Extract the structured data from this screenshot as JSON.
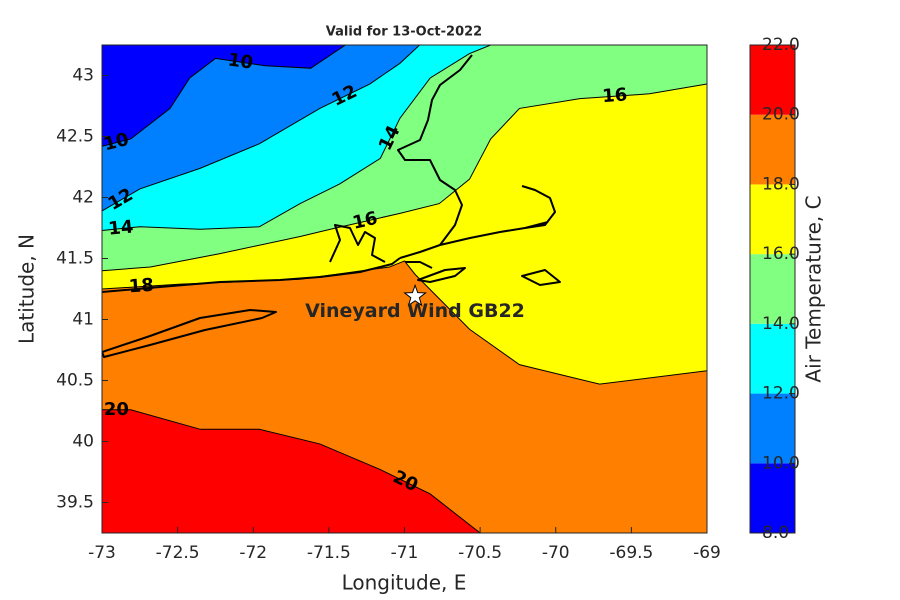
{
  "chart_data": {
    "type": "contour",
    "title": "Valid for 13-Oct-2022",
    "x_label": "Longitude, E",
    "y_label": "Latitude, N",
    "colorbar_label": "Air Temperature, C",
    "xlim": [
      -73,
      -69
    ],
    "ylim": [
      39.25,
      43.25
    ],
    "xticks": [
      -73,
      -72.5,
      -72,
      -71.5,
      -71,
      -70.5,
      -70,
      -69.5,
      -69
    ],
    "yticks": [
      39.5,
      40,
      40.5,
      41,
      41.5,
      42,
      42.5,
      43
    ],
    "clim": [
      8,
      22
    ],
    "cticks": [
      {
        "value": 8,
        "label": "8.0"
      },
      {
        "value": 10,
        "label": "10.0"
      },
      {
        "value": 12,
        "label": "12.0"
      },
      {
        "value": 14,
        "label": "14.0"
      },
      {
        "value": 16,
        "label": "16.0"
      },
      {
        "value": 18,
        "label": "18.0"
      },
      {
        "value": 20,
        "label": "20.0"
      },
      {
        "value": 22,
        "label": "22.0"
      }
    ],
    "colors": [
      "#0000ff",
      "#0080ff",
      "#00ffff",
      "#80ff80",
      "#ffff00",
      "#ff8000",
      "#ff0000"
    ],
    "contours": [
      {
        "level": 10,
        "lon": [
          -73,
          -72.81,
          -72.55,
          -72.42,
          -72.25,
          -71.92,
          -71.62,
          -71.39
        ],
        "lat": [
          42.42,
          42.48,
          42.73,
          42.98,
          43.14,
          43.08,
          43.06,
          43.25
        ]
      },
      {
        "level": 12,
        "lon": [
          -73,
          -72.75,
          -72.35,
          -71.96,
          -71.56,
          -71.23,
          -71.03,
          -70.9
        ],
        "lat": [
          41.89,
          42.07,
          42.24,
          42.44,
          42.73,
          42.93,
          43.1,
          43.25
        ]
      },
      {
        "level": 14,
        "lon": [
          -73,
          -72.75,
          -72.35,
          -71.96,
          -71.69,
          -71.43,
          -71.16,
          -71.03,
          -70.83,
          -70.57,
          -70.43
        ],
        "lat": [
          41.73,
          41.76,
          41.74,
          41.76,
          41.95,
          42.11,
          42.32,
          42.65,
          42.98,
          43.18,
          43.25
        ]
      },
      {
        "level": 16,
        "lon": [
          -73,
          -72.68,
          -72.22,
          -71.69,
          -71.49,
          -71.03,
          -70.77,
          -70.57,
          -70.43,
          -70.24,
          -69.84,
          -69.38,
          -69
        ],
        "lat": [
          41.4,
          41.43,
          41.54,
          41.68,
          41.74,
          41.87,
          41.95,
          42.15,
          42.48,
          42.73,
          42.81,
          42.85,
          42.93
        ]
      },
      {
        "level": 18,
        "lon": [
          -73,
          -72.48,
          -71.69,
          -71.1,
          -71,
          -70.93,
          -70.77,
          -70.57,
          -70.24,
          -69.71,
          -69
        ],
        "lat": [
          41.25,
          41.29,
          41.33,
          41.43,
          41.48,
          41.37,
          41.17,
          40.92,
          40.63,
          40.47,
          40.58
        ]
      },
      {
        "level": 20,
        "lon": [
          -73,
          -72.81,
          -72.35,
          -71.96,
          -71.56,
          -71.16,
          -70.83,
          -70.5
        ],
        "lat": [
          40.26,
          40.26,
          40.1,
          40.1,
          39.98,
          39.77,
          39.57,
          39.25
        ]
      }
    ],
    "annotation": {
      "text": "Vineyard Wind GB22",
      "lon": -70.93,
      "lat": 41.19
    }
  }
}
